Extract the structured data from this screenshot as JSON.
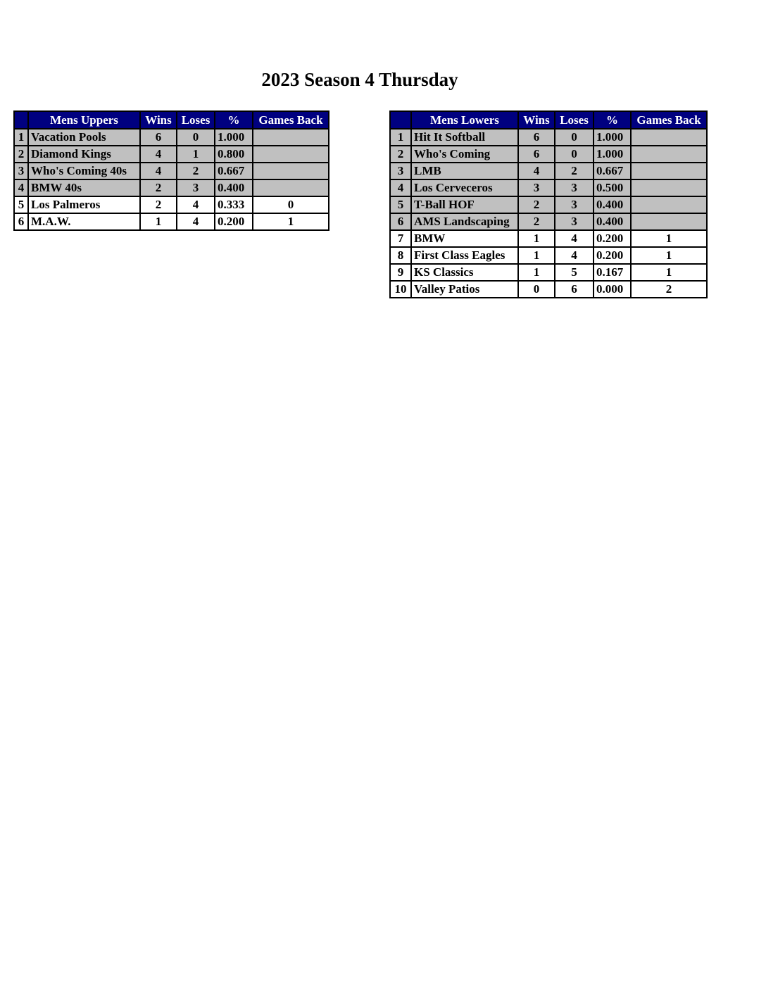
{
  "title": "2023 Season 4 Thursday",
  "colors": {
    "header_bg": "#000080",
    "header_text": "#ffffff",
    "playoff_row_bg": "#c0c0c0",
    "other_row_bg": "#ffffff"
  },
  "tables": [
    {
      "headers": [
        "",
        "Mens Uppers",
        "Wins",
        "Loses",
        "%",
        "Games Back"
      ],
      "rows": [
        {
          "rank": "1",
          "team": "Vacation Pools",
          "wins": "6",
          "loses": "0",
          "pct": "1.000",
          "gb": "",
          "shaded": true
        },
        {
          "rank": "2",
          "team": "Diamond Kings",
          "wins": "4",
          "loses": "1",
          "pct": "0.800",
          "gb": "",
          "shaded": true
        },
        {
          "rank": "3",
          "team": "Who's Coming 40s",
          "wins": "4",
          "loses": "2",
          "pct": "0.667",
          "gb": "",
          "shaded": true
        },
        {
          "rank": "4",
          "team": "BMW 40s",
          "wins": "2",
          "loses": "3",
          "pct": "0.400",
          "gb": "",
          "shaded": true
        },
        {
          "rank": "5",
          "team": "Los Palmeros",
          "wins": "2",
          "loses": "4",
          "pct": "0.333",
          "gb": "0",
          "shaded": false
        },
        {
          "rank": "6",
          "team": "M.A.W.",
          "wins": "1",
          "loses": "4",
          "pct": "0.200",
          "gb": "1",
          "shaded": false
        }
      ]
    },
    {
      "headers": [
        "",
        "Mens Lowers",
        "Wins",
        "Loses",
        "%",
        "Games Back"
      ],
      "rows": [
        {
          "rank": "1",
          "team": "Hit It Softball",
          "wins": "6",
          "loses": "0",
          "pct": "1.000",
          "gb": "",
          "shaded": true
        },
        {
          "rank": "2",
          "team": "Who's Coming",
          "wins": "6",
          "loses": "0",
          "pct": "1.000",
          "gb": "",
          "shaded": true
        },
        {
          "rank": "3",
          "team": "LMB",
          "wins": "4",
          "loses": "2",
          "pct": "0.667",
          "gb": "",
          "shaded": true
        },
        {
          "rank": "4",
          "team": "Los Cerveceros",
          "wins": "3",
          "loses": "3",
          "pct": "0.500",
          "gb": "",
          "shaded": true
        },
        {
          "rank": "5",
          "team": "T-Ball HOF",
          "wins": "2",
          "loses": "3",
          "pct": "0.400",
          "gb": "",
          "shaded": true
        },
        {
          "rank": "6",
          "team": "AMS Landscaping",
          "wins": "2",
          "loses": "3",
          "pct": "0.400",
          "gb": "",
          "shaded": true
        },
        {
          "rank": "7",
          "team": "BMW",
          "wins": "1",
          "loses": "4",
          "pct": "0.200",
          "gb": "1",
          "shaded": false
        },
        {
          "rank": "8",
          "team": "First Class Eagles",
          "wins": "1",
          "loses": "4",
          "pct": "0.200",
          "gb": "1",
          "shaded": false
        },
        {
          "rank": "9",
          "team": "KS Classics",
          "wins": "1",
          "loses": "5",
          "pct": "0.167",
          "gb": "1",
          "shaded": false
        },
        {
          "rank": "10",
          "team": "Valley Patios",
          "wins": "0",
          "loses": "6",
          "pct": "0.000",
          "gb": "2",
          "shaded": false
        }
      ]
    }
  ]
}
